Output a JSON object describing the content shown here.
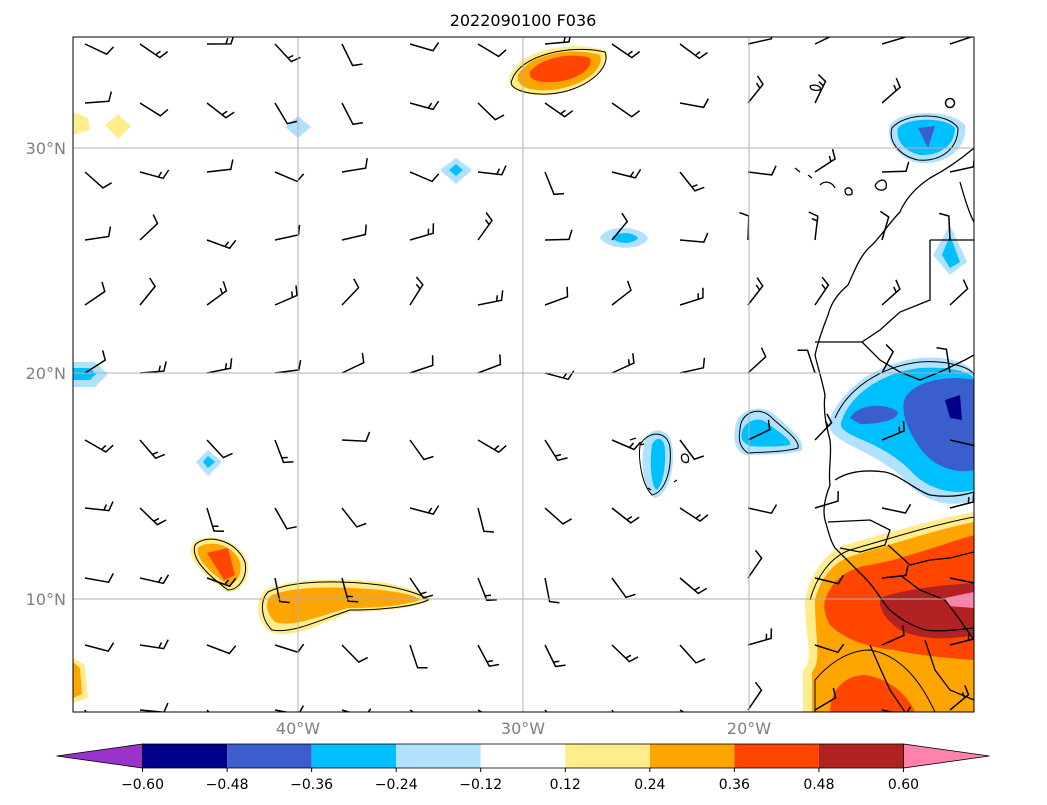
{
  "title": "2022090100 F036",
  "lat_labels": [
    "30°N",
    "20°N",
    "10°N"
  ],
  "lon_labels": [
    "40°W",
    "30°W",
    "20°W"
  ],
  "colorbar": {
    "tick_labels": [
      "−0.60",
      "−0.48",
      "−0.36",
      "−0.24",
      "−0.12",
      "0.12",
      "0.24",
      "0.36",
      "0.48",
      "0.60"
    ],
    "colors": [
      "#9933cc",
      "#00008b",
      "#3a5fcd",
      "#00bfff",
      "#b0e2ff",
      "#ffffff",
      "#ffec8b",
      "#ffa500",
      "#ff4500",
      "#b22222",
      "#ff82ab"
    ]
  },
  "map": {
    "lon_range": [
      -50,
      -10
    ],
    "lat_range": [
      5,
      35
    ],
    "gridlines": true
  }
}
